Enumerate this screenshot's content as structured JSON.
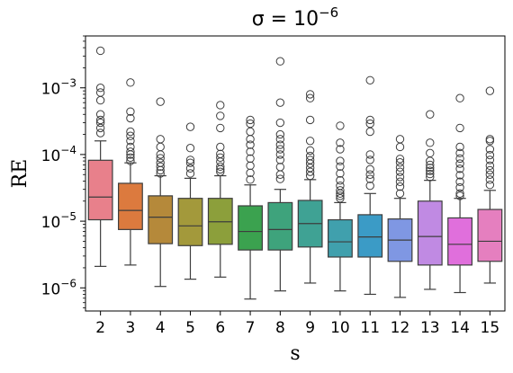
{
  "chart_data": {
    "type": "box",
    "title": "σ = 10",
    "title_exponent": "−6",
    "xlabel": "s",
    "ylabel": "RE",
    "yscale": "log",
    "ylim": [
      4.5e-07,
      0.006
    ],
    "y_ticks": [
      {
        "value": 1e-06,
        "base": "10",
        "exp": "−6"
      },
      {
        "value": 1e-05,
        "base": "10",
        "exp": "−5"
      },
      {
        "value": 0.0001,
        "base": "10",
        "exp": "−4"
      },
      {
        "value": 0.001,
        "base": "10",
        "exp": "−3"
      }
    ],
    "grid": false,
    "categories": [
      "2",
      "3",
      "4",
      "5",
      "6",
      "7",
      "8",
      "9",
      "10",
      "11",
      "12",
      "13",
      "14",
      "15"
    ],
    "boxes": [
      {
        "category": "2",
        "color": "#e8808b",
        "q1": 1.05e-05,
        "median": 2.3e-05,
        "q3": 8.2e-05,
        "whisker_low": 2.1e-06,
        "whisker_high": 0.00016,
        "outliers": [
          0.00021,
          0.00025,
          0.0003,
          0.00033,
          0.0004,
          0.00065,
          0.00085,
          0.001,
          0.0036
        ]
      },
      {
        "category": "3",
        "color": "#dc7a3e",
        "q1": 7.5e-06,
        "median": 1.45e-05,
        "q3": 3.7e-05,
        "whisker_low": 2.2e-06,
        "whisker_high": 7.5e-05,
        "outliers": [
          8e-05,
          9e-05,
          0.0001,
          0.00011,
          0.00013,
          0.00016,
          0.00019,
          0.00022,
          0.00035,
          0.00044,
          0.0012
        ]
      },
      {
        "category": "4",
        "color": "#b5893a",
        "q1": 4.6e-06,
        "median": 1.15e-05,
        "q3": 2.4e-05,
        "whisker_low": 1.05e-06,
        "whisker_high": 4.8e-05,
        "outliers": [
          5.2e-05,
          5.8e-05,
          6.6e-05,
          7.5e-05,
          8.8e-05,
          0.0001,
          0.00013,
          0.00017,
          0.00062
        ]
      },
      {
        "category": "5",
        "color": "#a3993b",
        "q1": 4.3e-06,
        "median": 8.5e-06,
        "q3": 2.2e-05,
        "whisker_low": 1.35e-06,
        "whisker_high": 4.4e-05,
        "outliers": [
          5.2e-05,
          6.2e-05,
          7.5e-05,
          8.3e-05,
          0.000125,
          0.00026
        ]
      },
      {
        "category": "6",
        "color": "#8c9f3b",
        "q1": 4.5e-06,
        "median": 9.8e-06,
        "q3": 2.2e-05,
        "whisker_low": 1.45e-06,
        "whisker_high": 4.8e-05,
        "outliers": [
          5.5e-05,
          6e-05,
          6.6e-05,
          7.8e-05,
          9e-05,
          0.000102,
          0.00013,
          0.00025,
          0.00038,
          0.00055
        ]
      },
      {
        "category": "7",
        "color": "#3ba24f",
        "q1": 3.7e-06,
        "median": 7e-06,
        "q3": 1.7e-05,
        "whisker_low": 6.8e-07,
        "whisker_high": 3.5e-05,
        "outliers": [
          4.2e-05,
          5.3e-05,
          6.8e-05,
          8.7e-05,
          0.00011,
          0.00014,
          0.00017,
          0.00022,
          0.00029,
          0.00033
        ]
      },
      {
        "category": "8",
        "color": "#3ea37c",
        "q1": 3.7e-06,
        "median": 7.5e-06,
        "q3": 1.9e-05,
        "whisker_low": 9e-07,
        "whisker_high": 3e-05,
        "outliers": [
          4.3e-05,
          5e-05,
          6.5e-05,
          8.3e-05,
          0.0001,
          0.00012,
          0.00014,
          0.00017,
          0.0002,
          0.0003,
          0.0006,
          0.0025
        ]
      },
      {
        "category": "9",
        "color": "#3fa294",
        "q1": 4.1e-06,
        "median": 9.2e-06,
        "q3": 2.05e-05,
        "whisker_low": 1.18e-06,
        "whisker_high": 4.2e-05,
        "outliers": [
          4.8e-05,
          5.5e-05,
          6.3e-05,
          7.3e-05,
          8.3e-05,
          9.5e-05,
          0.000115,
          0.00016,
          0.00033,
          0.0007,
          0.0008
        ]
      },
      {
        "category": "10",
        "color": "#40a0ad",
        "q1": 2.9e-06,
        "median": 4.9e-06,
        "q3": 1.05e-05,
        "whisker_low": 9e-07,
        "whisker_high": 1.9e-05,
        "outliers": [
          2.2e-05,
          2.4e-05,
          2.6e-05,
          2.9e-05,
          3.4e-05,
          4.1e-05,
          5.2e-05,
          6.6e-05,
          8e-05,
          0.00012,
          0.00015,
          0.00027
        ]
      },
      {
        "category": "11",
        "color": "#3b9bc6",
        "q1": 2.9e-06,
        "median": 5.8e-06,
        "q3": 1.25e-05,
        "whisker_low": 8e-07,
        "whisker_high": 2.6e-05,
        "outliers": [
          3.4e-05,
          4.3e-05,
          5e-05,
          6e-05,
          8.3e-05,
          0.0001,
          0.00022,
          0.00029,
          0.00033,
          0.0013
        ]
      },
      {
        "category": "12",
        "color": "#7f97e3",
        "q1": 2.5e-06,
        "median": 5.2e-06,
        "q3": 1.08e-05,
        "whisker_low": 7.2e-07,
        "whisker_high": 2.2e-05,
        "outliers": [
          2.6e-05,
          3.3e-05,
          3.9e-05,
          4.6e-05,
          5.5e-05,
          6.4e-05,
          7.6e-05,
          8.6e-05,
          0.00013,
          0.00017
        ]
      },
      {
        "category": "13",
        "color": "#c08ae3",
        "q1": 2.2e-06,
        "median": 5.9e-06,
        "q3": 2e-05,
        "whisker_low": 9.5e-07,
        "whisker_high": 4.1e-05,
        "outliers": [
          4.6e-05,
          5.1e-05,
          5.7e-05,
          6.3e-05,
          7e-05,
          8e-05,
          0.000105,
          0.00015,
          0.0004
        ]
      },
      {
        "category": "14",
        "color": "#e06fdc",
        "q1": 2.2e-06,
        "median": 4.5e-06,
        "q3": 1.12e-05,
        "whisker_low": 8.5e-07,
        "whisker_high": 2.2e-05,
        "outliers": [
          2.4e-05,
          2.6e-05,
          3.2e-05,
          3.9e-05,
          4.9e-05,
          6.1e-05,
          7.3e-05,
          8.7e-05,
          0.000105,
          0.00013,
          0.00025,
          0.0007
        ]
      },
      {
        "category": "15",
        "color": "#e57fbf",
        "q1": 2.5e-06,
        "median": 5e-06,
        "q3": 1.5e-05,
        "whisker_low": 1.18e-06,
        "whisker_high": 2.9e-05,
        "outliers": [
          3.5e-05,
          4.2e-05,
          5e-05,
          5.8e-05,
          6.8e-05,
          8.3e-05,
          9.8e-05,
          0.00012,
          0.00016,
          0.00017,
          0.0009
        ]
      }
    ]
  }
}
